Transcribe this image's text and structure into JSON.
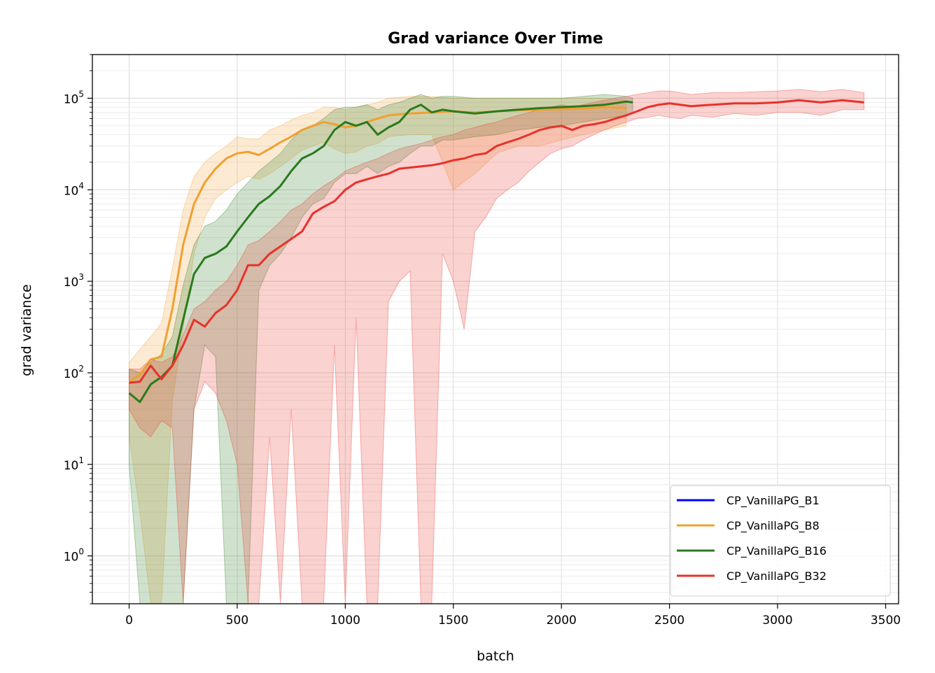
{
  "chart_data": {
    "type": "line",
    "title": "Grad variance Over Time",
    "xlabel": "batch",
    "ylabel": "grad variance",
    "yscale": "log",
    "xlim": [
      -170,
      3560
    ],
    "ylim": [
      0.3,
      300000
    ],
    "xticks": [
      0,
      500,
      1000,
      1500,
      2000,
      2500,
      3000,
      3500
    ],
    "xtick_labels": [
      "0",
      "500",
      "1000",
      "1500",
      "2000",
      "2500",
      "3000",
      "3500"
    ],
    "yticks": [
      1,
      10,
      100,
      1000,
      10000,
      100000
    ],
    "ytick_labels": [
      {
        "base": "10",
        "exp": "0"
      },
      {
        "base": "10",
        "exp": "1"
      },
      {
        "base": "10",
        "exp": "2"
      },
      {
        "base": "10",
        "exp": "3"
      },
      {
        "base": "10",
        "exp": "4"
      },
      {
        "base": "10",
        "exp": "5"
      }
    ],
    "grid": true,
    "legend_position": "lower-right",
    "series": [
      {
        "name": "CP_VanillaPG_B1",
        "color": "#0000ff",
        "x": [],
        "y": []
      },
      {
        "name": "CP_VanillaPG_B8",
        "color": "#f0a030",
        "x": [
          0,
          50,
          100,
          150,
          200,
          250,
          300,
          350,
          400,
          450,
          500,
          550,
          600,
          650,
          700,
          750,
          800,
          850,
          900,
          950,
          1000,
          1050,
          1100,
          1150,
          1200,
          1300,
          1400,
          1500,
          1600,
          1700,
          1800,
          1900,
          2000,
          2100,
          2200,
          2300
        ],
        "y": [
          80,
          95,
          140,
          150,
          500,
          2500,
          7000,
          12000,
          17000,
          22000,
          25000,
          26000,
          24000,
          28000,
          33000,
          38000,
          45000,
          50000,
          55000,
          52000,
          48000,
          50000,
          55000,
          60000,
          65000,
          68000,
          70000,
          72000,
          70000,
          72000,
          74000,
          75000,
          76000,
          77000,
          80000,
          78000
        ],
        "upper": [
          130,
          180,
          250,
          350,
          1400,
          6000,
          14000,
          20000,
          25000,
          30000,
          38000,
          36000,
          36000,
          45000,
          50000,
          58000,
          65000,
          70000,
          80000,
          80000,
          75000,
          80000,
          85000,
          90000,
          100000,
          105000,
          105000,
          100000,
          100000,
          100000,
          100000,
          100000,
          100000,
          100000,
          100000,
          95000
        ],
        "lower": [
          20,
          3,
          0.3,
          0.3,
          50,
          300,
          2000,
          5000,
          8000,
          10000,
          12000,
          14000,
          13000,
          15000,
          18000,
          22000,
          27000,
          30000,
          33000,
          28000,
          25000,
          26000,
          30000,
          32000,
          38000,
          40000,
          40000,
          10000,
          15000,
          25000,
          30000,
          30000,
          35000,
          40000,
          45000,
          50000
        ]
      },
      {
        "name": "CP_VanillaPG_B16",
        "color": "#2a7a1e",
        "x": [
          0,
          50,
          100,
          150,
          200,
          250,
          300,
          350,
          400,
          450,
          500,
          550,
          600,
          650,
          700,
          750,
          800,
          850,
          900,
          950,
          1000,
          1050,
          1100,
          1150,
          1200,
          1250,
          1300,
          1350,
          1400,
          1450,
          1500,
          1600,
          1700,
          1800,
          1900,
          2000,
          2100,
          2200,
          2300,
          2330
        ],
        "y": [
          60,
          48,
          75,
          90,
          120,
          380,
          1200,
          1800,
          2000,
          2400,
          3500,
          5000,
          7000,
          8500,
          11000,
          16000,
          22000,
          25000,
          30000,
          45000,
          55000,
          50000,
          55000,
          40000,
          48000,
          55000,
          75000,
          85000,
          70000,
          75000,
          72000,
          68000,
          72000,
          75000,
          78000,
          80000,
          82000,
          85000,
          92000,
          90000
        ],
        "upper": [
          110,
          100,
          130,
          160,
          250,
          900,
          2500,
          4000,
          4500,
          6000,
          9000,
          12000,
          16000,
          20000,
          25000,
          35000,
          45000,
          50000,
          60000,
          75000,
          80000,
          80000,
          85000,
          75000,
          85000,
          90000,
          100000,
          110000,
          100000,
          105000,
          105000,
          100000,
          100000,
          100000,
          100000,
          100000,
          105000,
          110000,
          105000,
          100000
        ],
        "lower": [
          10,
          0.3,
          0.3,
          0.3,
          0.3,
          0.3,
          40,
          200,
          150,
          0.3,
          0.3,
          0.3,
          800,
          1500,
          2000,
          3000,
          5000,
          7000,
          8000,
          12000,
          15000,
          15000,
          18000,
          15000,
          18000,
          20000,
          25000,
          30000,
          30000,
          35000,
          35000,
          38000,
          40000,
          45000,
          48000,
          50000,
          55000,
          60000,
          65000,
          70000
        ]
      },
      {
        "name": "CP_VanillaPG_B32",
        "color": "#e8322a",
        "x": [
          0,
          50,
          100,
          150,
          200,
          250,
          300,
          350,
          400,
          450,
          500,
          550,
          600,
          650,
          700,
          750,
          800,
          850,
          900,
          950,
          1000,
          1050,
          1100,
          1150,
          1200,
          1250,
          1300,
          1350,
          1400,
          1450,
          1500,
          1550,
          1600,
          1650,
          1700,
          1750,
          1800,
          1850,
          1900,
          1950,
          2000,
          2050,
          2100,
          2150,
          2200,
          2250,
          2300,
          2350,
          2400,
          2450,
          2500,
          2550,
          2600,
          2700,
          2800,
          2900,
          3000,
          3100,
          3200,
          3300,
          3400
        ],
        "y": [
          78,
          80,
          120,
          85,
          120,
          200,
          380,
          320,
          450,
          550,
          800,
          1500,
          1500,
          2000,
          2400,
          2900,
          3500,
          5500,
          6500,
          7500,
          10000,
          12000,
          13000,
          14000,
          15000,
          17000,
          17500,
          18000,
          18500,
          19500,
          21000,
          22000,
          24000,
          25000,
          30000,
          33000,
          36000,
          40000,
          45000,
          48000,
          50000,
          45000,
          50000,
          52000,
          55000,
          60000,
          65000,
          72000,
          80000,
          85000,
          88000,
          85000,
          82000,
          85000,
          88000,
          88000,
          90000,
          95000,
          90000,
          95000,
          90000
        ],
        "upper": [
          110,
          110,
          140,
          130,
          150,
          260,
          500,
          600,
          800,
          1000,
          1500,
          2500,
          2800,
          3500,
          4500,
          6000,
          7000,
          9000,
          11000,
          13000,
          16000,
          18000,
          20000,
          22000,
          25000,
          28000,
          30000,
          32000,
          35000,
          38000,
          40000,
          45000,
          48000,
          52000,
          55000,
          60000,
          65000,
          70000,
          75000,
          80000,
          85000,
          80000,
          85000,
          90000,
          95000,
          100000,
          105000,
          110000,
          115000,
          120000,
          120000,
          115000,
          110000,
          115000,
          115000,
          118000,
          120000,
          125000,
          118000,
          125000,
          115000
        ],
        "lower": [
          40,
          25,
          20,
          30,
          25,
          0.3,
          40,
          80,
          60,
          30,
          10,
          0.3,
          0.3,
          20,
          0.3,
          40,
          0.3,
          0.3,
          0.3,
          200,
          0.3,
          400,
          0.3,
          0.3,
          600,
          1000,
          1300,
          0.3,
          0.3,
          2000,
          1000,
          300,
          3500,
          5000,
          8000,
          10000,
          12000,
          16000,
          20000,
          25000,
          28000,
          30000,
          35000,
          40000,
          45000,
          50000,
          55000,
          60000,
          62000,
          65000,
          62000,
          60000,
          65000,
          62000,
          68000,
          65000,
          70000,
          70000,
          65000,
          75000,
          75000
        ]
      }
    ]
  }
}
